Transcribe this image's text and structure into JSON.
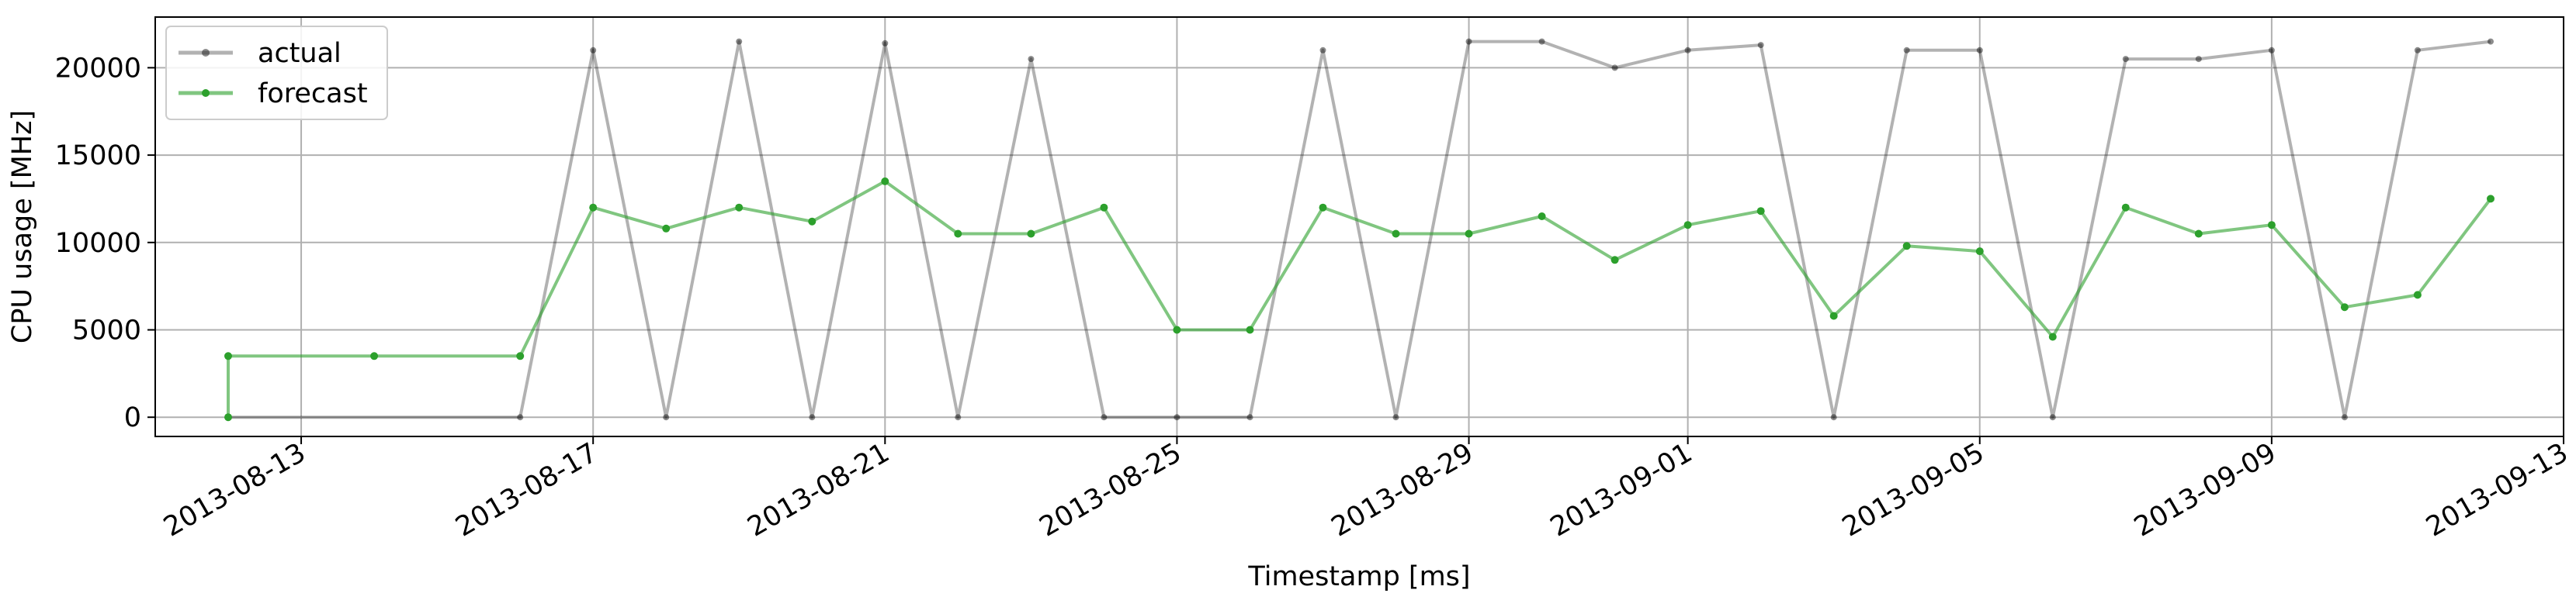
{
  "chart_data": {
    "type": "line",
    "title": "",
    "xlabel": "Timestamp [ms]",
    "ylabel": "CPU usage [MHz]",
    "x_type": "date",
    "xlim": [
      "2013-08-11",
      "2013-09-13"
    ],
    "ylim": [
      -1100,
      22900
    ],
    "grid": true,
    "legend_placement": "top-left",
    "x_ticks": [
      "2013-08-13",
      "2013-08-17",
      "2013-08-21",
      "2013-08-25",
      "2013-08-29",
      "2013-09-01",
      "2013-09-05",
      "2013-09-09",
      "2013-09-13"
    ],
    "y_ticks": [
      0,
      5000,
      10000,
      15000,
      20000
    ],
    "series": [
      {
        "name": "actual",
        "color": "#000000",
        "points": [
          [
            "2013-08-12",
            0
          ],
          [
            "2013-08-16",
            0
          ],
          [
            "2013-08-17",
            21000
          ],
          [
            "2013-08-18",
            0
          ],
          [
            "2013-08-19",
            21500
          ],
          [
            "2013-08-20",
            0
          ],
          [
            "2013-08-21",
            21400
          ],
          [
            "2013-08-22",
            0
          ],
          [
            "2013-08-23",
            20500
          ],
          [
            "2013-08-24",
            0
          ],
          [
            "2013-08-25",
            0
          ],
          [
            "2013-08-26",
            0
          ],
          [
            "2013-08-27",
            21000
          ],
          [
            "2013-08-28",
            0
          ],
          [
            "2013-08-29",
            21500
          ],
          [
            "2013-08-30",
            21500
          ],
          [
            "2013-08-31",
            20000
          ],
          [
            "2013-09-01",
            21000
          ],
          [
            "2013-09-02",
            21300
          ],
          [
            "2013-09-03",
            0
          ],
          [
            "2013-09-04",
            21000
          ],
          [
            "2013-09-05",
            21000
          ],
          [
            "2013-09-06",
            0
          ],
          [
            "2013-09-07",
            20500
          ],
          [
            "2013-09-08",
            20500
          ],
          [
            "2013-09-09",
            21000
          ],
          [
            "2013-09-10",
            0
          ],
          [
            "2013-09-11",
            21000
          ],
          [
            "2013-09-12",
            21500
          ]
        ]
      },
      {
        "name": "forecast",
        "color": "#2ca02c",
        "points": [
          [
            "2013-08-12",
            0
          ],
          [
            "2013-08-12",
            3500
          ],
          [
            "2013-08-14",
            3500
          ],
          [
            "2013-08-16",
            3500
          ],
          [
            "2013-08-17",
            12000
          ],
          [
            "2013-08-18",
            10800
          ],
          [
            "2013-08-19",
            12000
          ],
          [
            "2013-08-20",
            11200
          ],
          [
            "2013-08-21",
            13500
          ],
          [
            "2013-08-22",
            10500
          ],
          [
            "2013-08-23",
            10500
          ],
          [
            "2013-08-24",
            12000
          ],
          [
            "2013-08-25",
            5000
          ],
          [
            "2013-08-26",
            5000
          ],
          [
            "2013-08-27",
            12000
          ],
          [
            "2013-08-28",
            10500
          ],
          [
            "2013-08-29",
            10500
          ],
          [
            "2013-08-30",
            11500
          ],
          [
            "2013-08-31",
            9000
          ],
          [
            "2013-09-01",
            11000
          ],
          [
            "2013-09-02",
            11800
          ],
          [
            "2013-09-03",
            5800
          ],
          [
            "2013-09-04",
            9800
          ],
          [
            "2013-09-05",
            9500
          ],
          [
            "2013-09-06",
            4600
          ],
          [
            "2013-09-07",
            12000
          ],
          [
            "2013-09-08",
            10500
          ],
          [
            "2013-09-09",
            11000
          ],
          [
            "2013-09-10",
            6300
          ],
          [
            "2013-09-11",
            7000
          ],
          [
            "2013-09-12",
            12500
          ]
        ]
      }
    ]
  }
}
